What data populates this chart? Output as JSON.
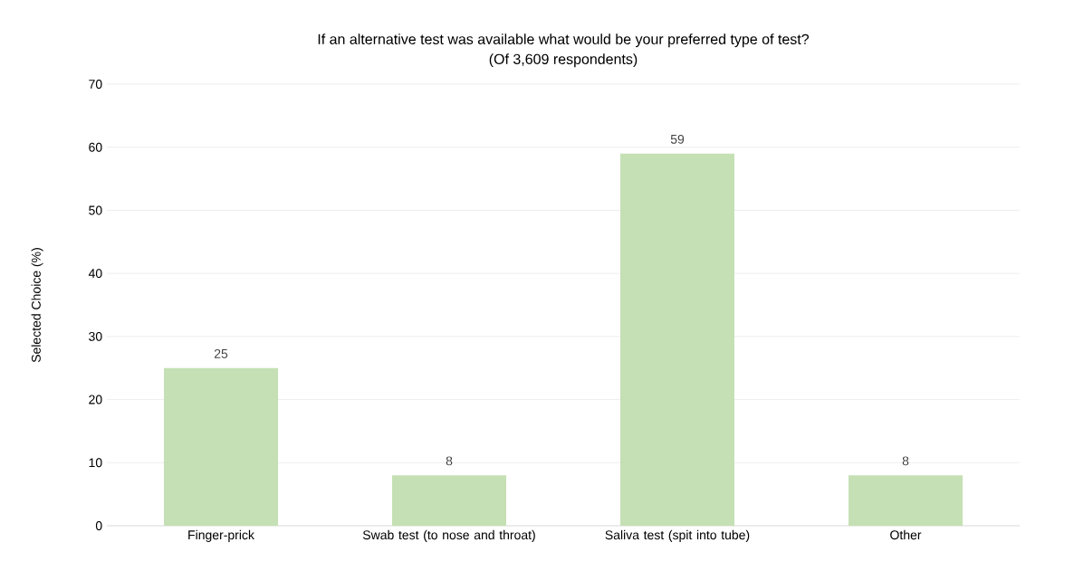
{
  "chart_data": {
    "type": "bar",
    "title": "If an alternative test was available what would be your preferred type of test?",
    "subtitle": "(Of 3,609 respondents)",
    "ylabel": "Selected Choice (%)",
    "categories": [
      "Finger-prick",
      "Swab test (to nose and throat)",
      "Saliva test (spit into tube)",
      "Other"
    ],
    "values": [
      25,
      8,
      59,
      8
    ],
    "color": "#c5e0b4",
    "ylim": [
      0,
      70
    ],
    "yticks": [
      0,
      10,
      20,
      30,
      40,
      50,
      60,
      70
    ],
    "grid": "y",
    "data_labels": true
  }
}
